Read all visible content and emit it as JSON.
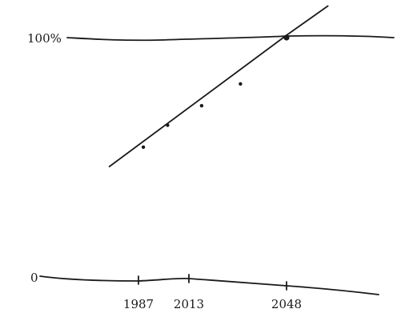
{
  "chart_data": {
    "type": "scatter",
    "title": "",
    "xlabel": "",
    "ylabel": "",
    "x_ticks": [
      "1987",
      "2013",
      "2048"
    ],
    "y_ticks": [
      "0",
      "100%"
    ],
    "xlim": [
      1960,
      2079
    ],
    "ylim": [
      0,
      100
    ],
    "grid": false,
    "series": [
      {
        "type": "scatter",
        "points": [
          {
            "x": 1989,
            "y": 55
          },
          {
            "x": 1999,
            "y": 64
          },
          {
            "x": 2013,
            "y": 72
          },
          {
            "x": 2029,
            "y": 81
          },
          {
            "x": 2048,
            "y": 100
          }
        ]
      },
      {
        "type": "line",
        "points": [
          {
            "x": 1975,
            "y": 47
          },
          {
            "x": 2048,
            "y": 101
          },
          {
            "x": 2065,
            "y": 113
          }
        ]
      }
    ]
  }
}
